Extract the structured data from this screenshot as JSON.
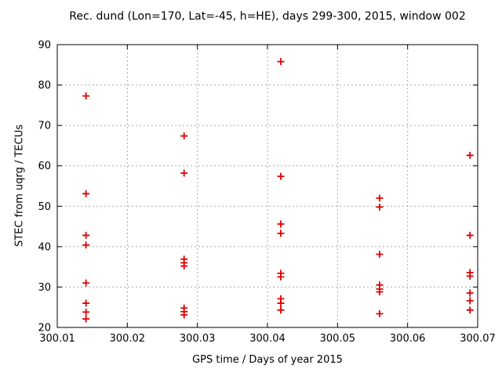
{
  "chart_data": {
    "type": "scatter",
    "title": "Rec. dund (Lon=170, Lat=-45, h=HE), days 299-300, 2015, window 002",
    "xlabel": "GPS time / Days of year 2015",
    "ylabel": "STEC from uqrg / TECUs",
    "xlim": [
      300.01,
      300.07
    ],
    "ylim": [
      20,
      90
    ],
    "xticks": [
      300.01,
      300.02,
      300.03,
      300.04,
      300.05,
      300.06,
      300.07
    ],
    "yticks": [
      20,
      30,
      40,
      50,
      60,
      70,
      80,
      90
    ],
    "grid": true,
    "legend": false,
    "marker": "plus",
    "colors": {
      "marker": "#e00000",
      "grid": "#a8a8a8",
      "axis": "#000000",
      "background": "#ffffff"
    },
    "series": [
      {
        "name": "STEC",
        "points": [
          [
            300.0141,
            77.3
          ],
          [
            300.0141,
            53.1
          ],
          [
            300.0141,
            42.8
          ],
          [
            300.0141,
            40.4
          ],
          [
            300.0141,
            31.0
          ],
          [
            300.0141,
            26.0
          ],
          [
            300.0141,
            23.8
          ],
          [
            300.0141,
            22.1
          ],
          [
            300.0281,
            67.4
          ],
          [
            300.0281,
            58.2
          ],
          [
            300.0281,
            36.9
          ],
          [
            300.0281,
            36.0
          ],
          [
            300.0281,
            35.2
          ],
          [
            300.0281,
            24.8
          ],
          [
            300.0281,
            23.9
          ],
          [
            300.0281,
            23.1
          ],
          [
            300.0419,
            85.8
          ],
          [
            300.0419,
            57.4
          ],
          [
            300.0419,
            45.6
          ],
          [
            300.0419,
            43.3
          ],
          [
            300.0419,
            33.4
          ],
          [
            300.0419,
            32.5
          ],
          [
            300.0419,
            27.1
          ],
          [
            300.0419,
            26.0
          ],
          [
            300.0419,
            24.3
          ],
          [
            300.056,
            52.0
          ],
          [
            300.056,
            49.8
          ],
          [
            300.056,
            38.1
          ],
          [
            300.056,
            30.5
          ],
          [
            300.056,
            29.5
          ],
          [
            300.056,
            28.8
          ],
          [
            300.056,
            23.4
          ],
          [
            300.0689,
            62.6
          ],
          [
            300.0689,
            42.8
          ],
          [
            300.0689,
            33.6
          ],
          [
            300.0689,
            32.7
          ],
          [
            300.0689,
            28.5
          ],
          [
            300.0689,
            26.6
          ],
          [
            300.0689,
            24.3
          ]
        ]
      }
    ]
  }
}
